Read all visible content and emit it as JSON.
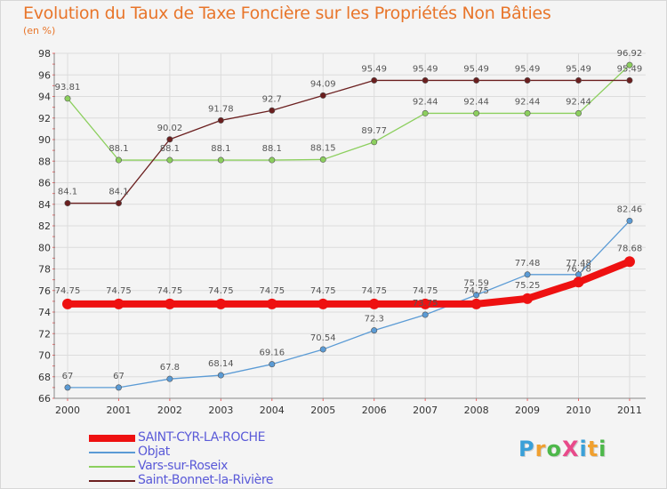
{
  "title": "Evolution du Taux de Taxe Foncière sur les Propriétés Non Bâties",
  "unit": "(en %)",
  "logo": {
    "text": "ProXiti",
    "colors": [
      "#3aa0d8",
      "#f0a030",
      "#4db84a",
      "#e84a8a",
      "#3aa0d8",
      "#f0a030",
      "#4db84a"
    ]
  },
  "chart_data": {
    "type": "line",
    "title": "Evolution du Taux de Taxe Foncière sur les Propriétés Non Bâties",
    "ylabel": "(en %)",
    "x": [
      "2000",
      "2001",
      "2002",
      "2003",
      "2004",
      "2005",
      "2006",
      "2007",
      "2008",
      "2009",
      "2010",
      "2011"
    ],
    "ylim": [
      66,
      98
    ],
    "yticks": [
      "66",
      "68",
      "70",
      "72",
      "74",
      "76",
      "78",
      "80",
      "82",
      "84",
      "86",
      "88",
      "90",
      "92",
      "94",
      "96",
      "98"
    ],
    "grid": true,
    "legend_position": "bottom-left",
    "series": [
      {
        "name": "SAINT-CYR-LA-ROCHE",
        "color": "#ee1111",
        "values": [
          74.75,
          74.75,
          74.75,
          74.75,
          74.75,
          74.75,
          74.75,
          74.75,
          74.75,
          75.25,
          76.78,
          78.68
        ],
        "labels": [
          "74.75",
          "74.75",
          "74.75",
          "74.75",
          "74.75",
          "74.75",
          "74.75",
          "74.75",
          "74.75",
          "75.25",
          "76.78",
          "78.68"
        ]
      },
      {
        "name": "Objat",
        "color": "#5b9bd5",
        "values": [
          67,
          67,
          67.8,
          68.14,
          69.16,
          70.54,
          72.3,
          73.75,
          75.59,
          77.48,
          77.48,
          82.46
        ],
        "labels": [
          "67",
          "67",
          "67.8",
          "68.14",
          "69.16",
          "70.54",
          "72.3",
          "73.75",
          "75.59",
          "77.48",
          "77.48",
          "82.46"
        ]
      },
      {
        "name": "Vars-sur-Roseix",
        "color": "#8ccf5e",
        "values": [
          93.81,
          88.1,
          88.1,
          88.1,
          88.1,
          88.15,
          89.77,
          92.44,
          92.44,
          92.44,
          92.44,
          96.92
        ],
        "labels": [
          "93.81",
          "88.1",
          "88.1",
          "88.1",
          "88.1",
          "88.15",
          "89.77",
          "92.44",
          "92.44",
          "92.44",
          "92.44",
          "96.92"
        ]
      },
      {
        "name": "Saint-Bonnet-la-Rivière",
        "color": "#6b1f1f",
        "values": [
          84.1,
          84.1,
          90.02,
          91.78,
          92.7,
          94.09,
          95.49,
          95.49,
          95.49,
          95.49,
          95.49,
          95.49
        ],
        "labels": [
          "84.1",
          "84.1",
          "90.02",
          "91.78",
          "92.7",
          "94.09",
          "95.49",
          "95.49",
          "95.49",
          "95.49",
          "95.49",
          "95.49"
        ]
      }
    ]
  }
}
